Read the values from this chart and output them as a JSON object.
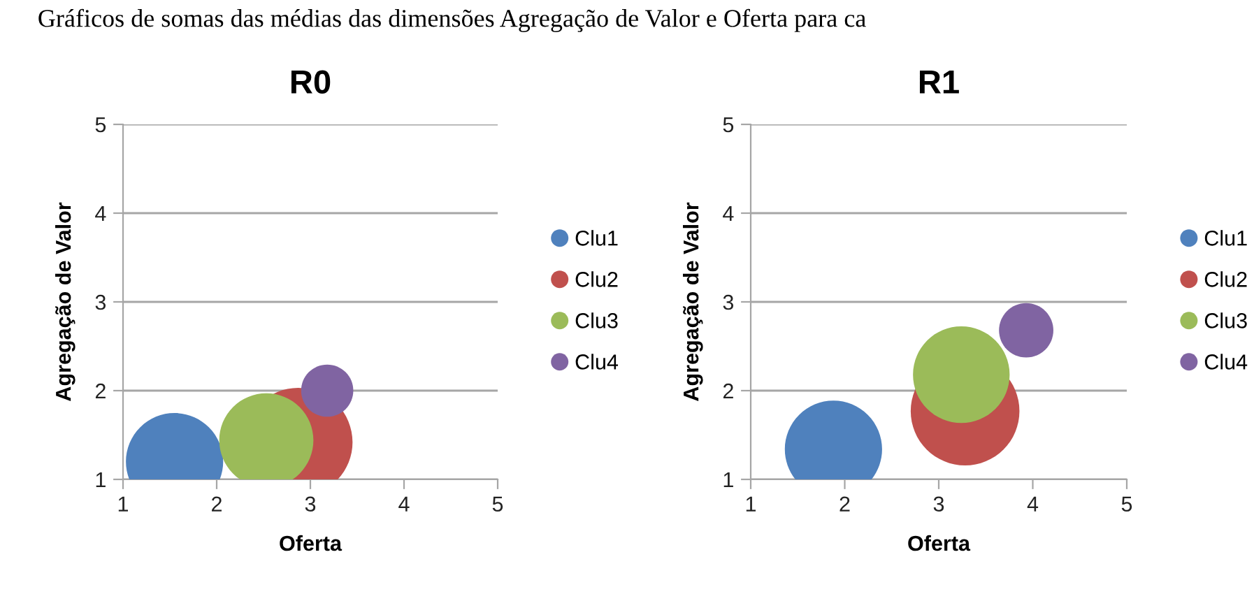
{
  "chart_data": [
    {
      "type": "bubble",
      "title": "R0",
      "xlabel": "Oferta",
      "ylabel": "Agregação de Valor",
      "annotations": [
        "Gráficos de somas das médias das dimensões Agregação de Valor e Oferta para ca"
      ],
      "xlim": [
        1,
        5
      ],
      "ylim": [
        1,
        5
      ],
      "xticks": [
        1,
        2,
        3,
        4,
        5
      ],
      "yticks": [
        1,
        2,
        3,
        4,
        5
      ],
      "grid": "y",
      "legend": "right",
      "series": [
        {
          "name": "Clu1",
          "color": "#4f81bd",
          "x": [
            1.55
          ],
          "values": [
            1.2
          ],
          "sizes": [
            0.8
          ]
        },
        {
          "name": "Clu2",
          "color": "#c0504d",
          "x": [
            2.87
          ],
          "values": [
            1.42
          ],
          "sizes": [
            1
          ]
        },
        {
          "name": "Clu3",
          "color": "#9bbb59",
          "x": [
            2.53
          ],
          "values": [
            1.44
          ],
          "sizes": [
            0.75
          ]
        },
        {
          "name": "Clu4",
          "color": "#8064a2",
          "x": [
            3.18
          ],
          "values": [
            2.0
          ],
          "sizes": [
            0.23
          ]
        }
      ]
    },
    {
      "type": "bubble",
      "title": "R1",
      "xlabel": "Oferta",
      "ylabel": "Agregação de Valor",
      "xlim": [
        1,
        5
      ],
      "ylim": [
        1,
        5
      ],
      "xticks": [
        1,
        2,
        3,
        4,
        5
      ],
      "yticks": [
        1,
        2,
        3,
        4,
        5
      ],
      "grid": "y",
      "legend": "right",
      "series": [
        {
          "name": "Clu1",
          "color": "#4f81bd",
          "x": [
            1.88
          ],
          "values": [
            1.34
          ],
          "sizes": [
            0.8
          ]
        },
        {
          "name": "Clu2",
          "color": "#c0504d",
          "x": [
            3.28
          ],
          "values": [
            1.77
          ],
          "sizes": [
            1
          ]
        },
        {
          "name": "Clu3",
          "color": "#9bbb59",
          "x": [
            3.24
          ],
          "values": [
            2.18
          ],
          "sizes": [
            0.79
          ]
        },
        {
          "name": "Clu4",
          "color": "#8064a2",
          "x": [
            3.93
          ],
          "values": [
            2.68
          ],
          "sizes": [
            0.25
          ]
        }
      ]
    }
  ]
}
